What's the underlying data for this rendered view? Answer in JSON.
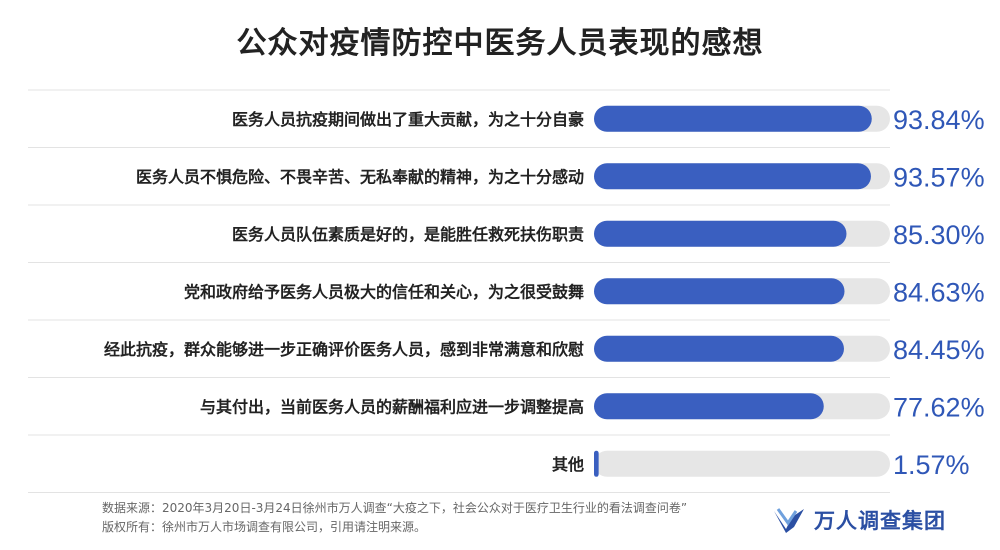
{
  "title": "公众对疫情防控中医务人员表现的感想",
  "chart_data": {
    "type": "bar",
    "orientation": "horizontal",
    "categories": [
      "医务人员抗疫期间做出了重大贡献，为之十分自豪",
      "医务人员不惧危险、不畏辛苦、无私奉献的精神，为之十分感动",
      "医务人员队伍素质是好的，是能胜任救死扶伤职责",
      "党和政府给予医务人员极大的信任和关心，为之很受鼓舞",
      "经此抗疫，群众能够进一步正确评价医务人员，感到非常满意和欣慰",
      "与其付出，当前医务人员的薪酬福利应进一步调整提高",
      "其他"
    ],
    "values": [
      93.84,
      93.57,
      85.3,
      84.63,
      84.45,
      77.62,
      1.57
    ],
    "value_labels": [
      "93.84%",
      "93.57%",
      "85.30%",
      "84.63%",
      "84.45%",
      "77.62%",
      "1.57%"
    ],
    "xlim": [
      0,
      100
    ],
    "bar_color": "#3a5fc0",
    "track_color": "#e6e6e6"
  },
  "source_line1": "数据来源：2020年3月20日-3月24日徐州市万人调查“大疫之下，社会公众对于医疗卫生行业的看法调查问卷”",
  "source_line2": "版权所有：徐州市万人市场调查有限公司，引用请注明来源。",
  "logo_text": "万人调查集团",
  "colors": {
    "brand": "#2b4fa3",
    "value": "#2f57b7"
  }
}
